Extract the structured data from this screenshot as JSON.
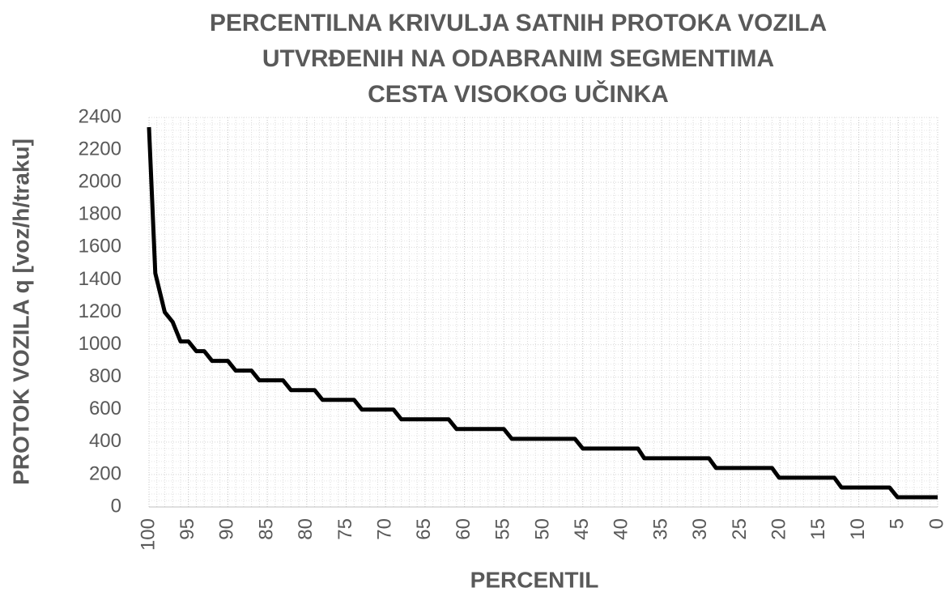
{
  "chart_data": {
    "type": "line",
    "title": [
      "PERCENTILNA KRIVULJA SATNIH PROTOKA VOZILA",
      "UTVRĐENIH NA ODABRANIM SEGMENTIMA",
      "CESTA VISOKOG UČINKA"
    ],
    "xlabel": "PERCENTIL",
    "ylabel": "PROTOK VOZILA q [voz/h/traku]",
    "x": [
      100,
      99.2,
      98,
      97,
      96,
      95,
      94,
      93,
      92,
      90,
      89,
      87,
      86,
      83,
      82,
      79,
      78,
      74,
      73,
      69,
      68,
      62,
      61,
      55,
      54,
      46,
      45,
      38,
      37.2,
      29,
      28.1,
      21,
      20.1,
      13.1,
      12.2,
      6.1,
      5.1,
      0
    ],
    "series": [
      {
        "name": "PROTOK",
        "color": "#000000",
        "values": [
          2340,
          1440,
          1200,
          1140,
          1020,
          1020,
          960,
          960,
          900,
          900,
          840,
          840,
          780,
          780,
          720,
          720,
          660,
          660,
          600,
          600,
          540,
          540,
          480,
          480,
          420,
          420,
          360,
          360,
          300,
          300,
          240,
          240,
          180,
          180,
          120,
          120,
          60,
          60
        ]
      }
    ],
    "xlim": [
      100,
      0
    ],
    "xticks": [
      100,
      95,
      90,
      85,
      80,
      75,
      70,
      65,
      60,
      55,
      50,
      45,
      40,
      35,
      30,
      25,
      20,
      15,
      10,
      5,
      0
    ],
    "ylim": [
      0,
      2400
    ],
    "yticks": [
      0,
      200,
      400,
      600,
      800,
      1000,
      1200,
      1400,
      1600,
      1800,
      2000,
      2200,
      2400
    ],
    "grid": true,
    "minor_grid": {
      "x": 1,
      "y": 40
    }
  }
}
